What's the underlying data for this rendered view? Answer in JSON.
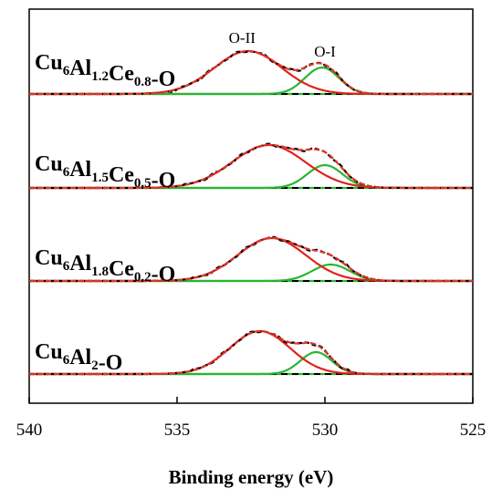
{
  "chart_data": {
    "type": "line",
    "title": "",
    "xlabel": "Binding energy (eV)",
    "ylabel": "",
    "xlim": [
      540,
      525
    ],
    "x_reversed": true,
    "xticks": [
      "540",
      "535",
      "530",
      "525"
    ],
    "grid": false,
    "legend": "none",
    "peak_labels": [
      {
        "text": "O-II",
        "x": 532.8
      },
      {
        "text": "O-I",
        "x": 530.0
      }
    ],
    "colors": {
      "experimental": "#000000",
      "envelope": "#e0342c",
      "o2_peak": "#e0231b",
      "o1_peak": "#2bb534",
      "background": "#000000",
      "baseline_overlay": "#2bb534"
    },
    "panels": [
      {
        "label": {
          "base": "Cu",
          "sub1": "6",
          "mid1": "Al",
          "sub2": "1.2",
          "mid2": "Ce",
          "sub3": "0.8",
          "tail": "-O"
        },
        "o2": {
          "center": 532.6,
          "fwhm": 2.7,
          "height": 47
        },
        "o1": {
          "center": 530.1,
          "fwhm": 1.35,
          "height": 29
        },
        "background_start": 0,
        "background_end": 0
      },
      {
        "label": {
          "base": "Cu",
          "sub1": "6",
          "mid1": "Al",
          "sub2": "1.5",
          "mid2": "Ce",
          "sub3": "0.5",
          "tail": "-O"
        },
        "o2": {
          "center": 531.9,
          "fwhm": 2.9,
          "height": 47
        },
        "o1": {
          "center": 530.0,
          "fwhm": 1.4,
          "height": 25
        },
        "background_start": 0,
        "background_end": 0
      },
      {
        "label": {
          "base": "Cu",
          "sub1": "6",
          "mid1": "Al",
          "sub2": "1.8",
          "mid2": "Ce",
          "sub3": "0.2",
          "tail": "-O"
        },
        "o2": {
          "center": 531.8,
          "fwhm": 2.7,
          "height": 47
        },
        "o1": {
          "center": 529.8,
          "fwhm": 1.5,
          "height": 18
        },
        "background_start": 0,
        "background_end": 0
      },
      {
        "label": {
          "base": "Cu",
          "sub1": "6",
          "mid1": "Al",
          "sub2": "2",
          "mid2": "",
          "sub3": "",
          "tail": "-O"
        },
        "o2": {
          "center": 532.2,
          "fwhm": 2.4,
          "height": 47
        },
        "o1": {
          "center": 530.3,
          "fwhm": 1.25,
          "height": 24
        },
        "background_start": 0,
        "background_end": 0
      }
    ]
  }
}
